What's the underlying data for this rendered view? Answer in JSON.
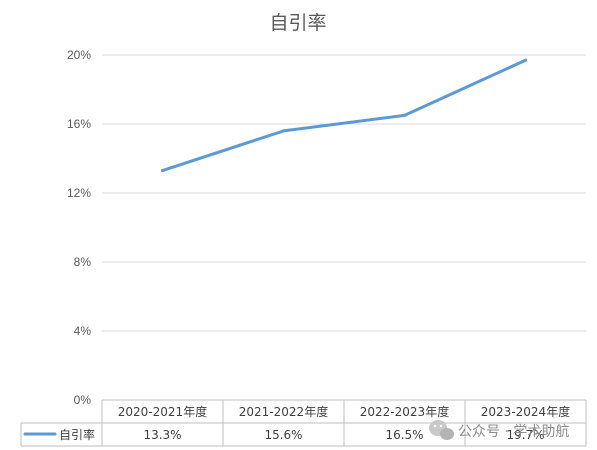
{
  "chart_data": {
    "type": "line",
    "title": "自引率",
    "categories": [
      "2020-2021年度",
      "2021-2022年度",
      "2022-2023年度",
      "2023-2024年度"
    ],
    "series": [
      {
        "name": "自引率",
        "values": [
          13.3,
          15.6,
          16.5,
          19.7
        ],
        "labels": [
          "13.3%",
          "15.6%",
          "16.5%",
          "19.7%"
        ],
        "color": "#5b9bd5"
      }
    ],
    "yticks": [
      0,
      4,
      8,
      12,
      16,
      20
    ],
    "ytick_labels": [
      "0%",
      "4%",
      "8%",
      "12%",
      "16%",
      "20%"
    ],
    "ylim": [
      0,
      20
    ],
    "grid": true,
    "legend": "data-table-left"
  },
  "watermark": {
    "text": "公众号 · 学术助航",
    "icon": "wechat-icon"
  }
}
